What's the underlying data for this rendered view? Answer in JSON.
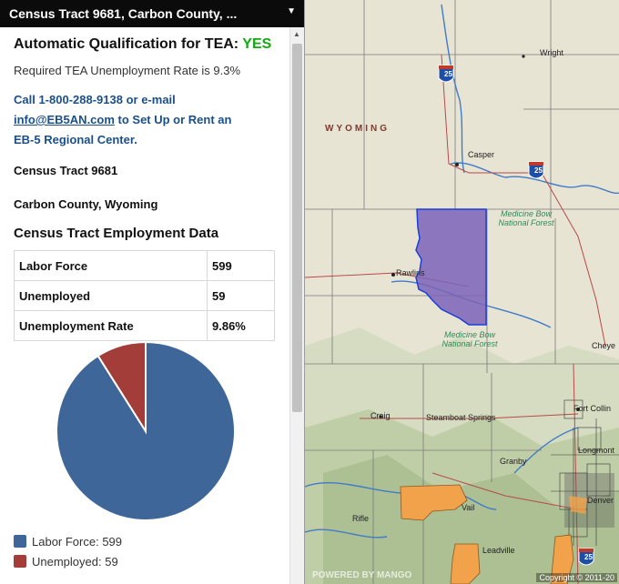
{
  "panel": {
    "title": "Census Tract 9681, Carbon County, ...",
    "toggle_icon": "▼"
  },
  "tea": {
    "label": "Automatic Qualification for TEA:",
    "status": "YES",
    "status_color": "#11aa11",
    "rate_text": "Required TEA Unemployment Rate is 9.3%"
  },
  "contact": {
    "prefix": "Call 1-800-288-9138 or e-mail",
    "email": "info@EB5AN.com",
    "suffix_1": " to Set Up or Rent an",
    "suffix_2": "EB-5 Regional Center."
  },
  "tract": {
    "name": "Census Tract 9681",
    "county": "Carbon County, Wyoming"
  },
  "employment": {
    "title": "Census Tract Employment Data",
    "rows": [
      {
        "label": "Labor Force",
        "value": "599"
      },
      {
        "label": "Unemployed",
        "value": "59"
      },
      {
        "label": "Unemployment Rate",
        "value": "9.86%"
      }
    ]
  },
  "chart_data": {
    "type": "pie",
    "categories": [
      "Labor Force",
      "Unemployed"
    ],
    "values": [
      599,
      59
    ],
    "colors": [
      "#3e6699",
      "#a33d3a"
    ],
    "legend": [
      "Labor Force: 599",
      "Unemployed: 59"
    ],
    "legend_position": "bottom"
  },
  "map": {
    "state": "WYOMING",
    "cities": [
      "Wright",
      "Casper",
      "Rawlins",
      "Cheye",
      "Craig",
      "Steamboat Springs",
      "Granby",
      "Fort Collin",
      "Longmont",
      "Denver",
      "Vail",
      "Leadville",
      "Rifle"
    ],
    "forests": [
      "Medicine Bow National Forest",
      "Medicine Bow National Forest"
    ],
    "interstates": [
      "25",
      "25",
      "25"
    ],
    "attribution": "Copyright © 2011-20",
    "powered_by": "POWERED BY MANGO",
    "highlight_color": "#7b63b8",
    "tea_area_color": "#f2a24a"
  }
}
